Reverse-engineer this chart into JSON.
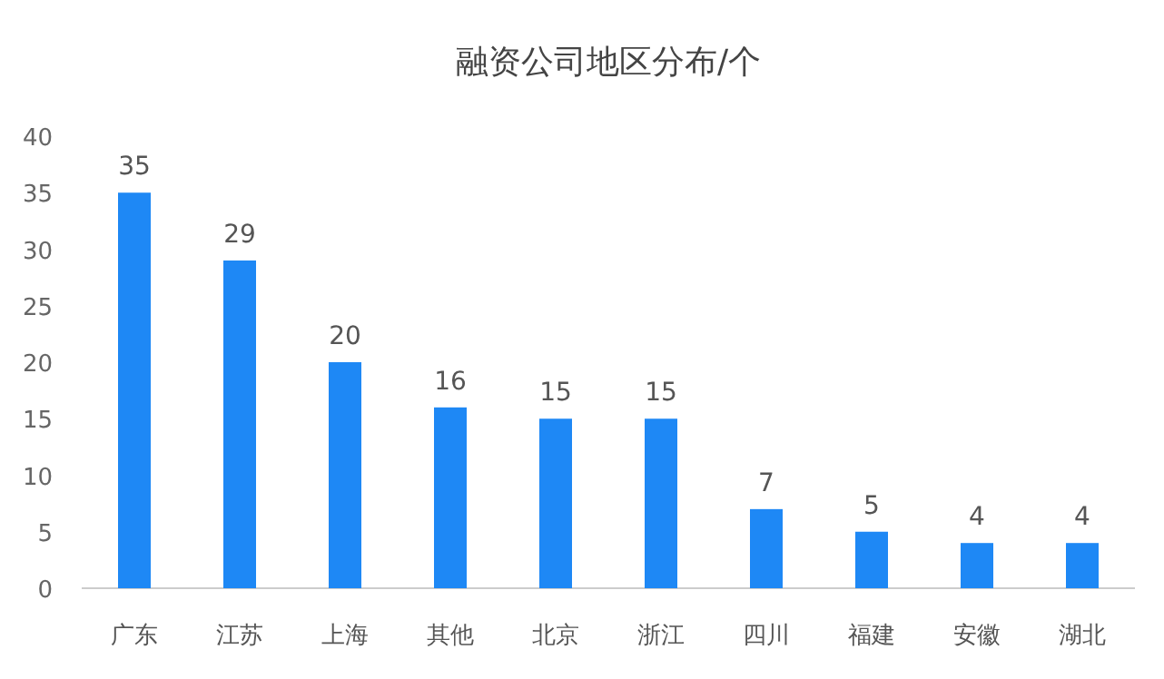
{
  "chart_data": {
    "type": "bar",
    "title": "融资公司地区分布/个",
    "categories": [
      "广东",
      "江苏",
      "上海",
      "其他",
      "北京",
      "浙江",
      "四川",
      "福建",
      "安徽",
      "湖北"
    ],
    "values": [
      35,
      29,
      20,
      16,
      15,
      15,
      7,
      5,
      4,
      4
    ],
    "color": "#1e88f5",
    "ylim": [
      0,
      40
    ],
    "yticks": [
      0,
      5,
      10,
      15,
      20,
      25,
      30,
      35,
      40
    ],
    "data_labels": true
  }
}
